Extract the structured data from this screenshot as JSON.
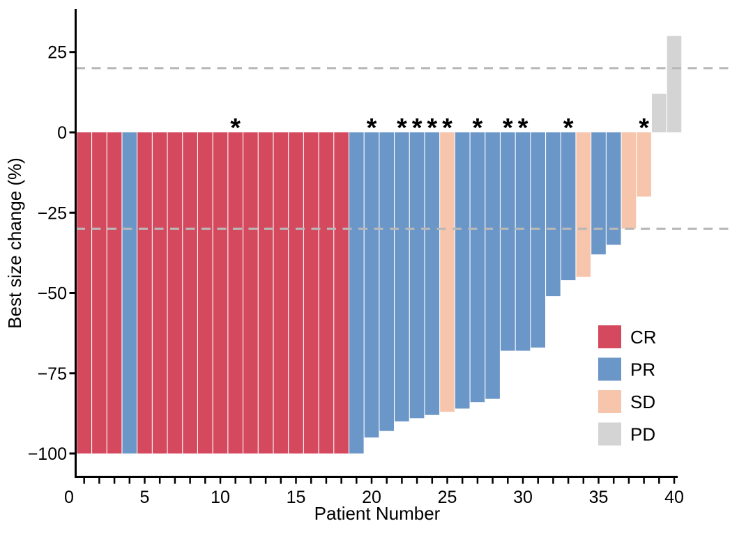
{
  "chart_data": {
    "type": "bar",
    "title": "",
    "xlabel": "Patient Number",
    "ylabel": "Best size change (%)",
    "xlim": [
      0,
      40
    ],
    "ylim": [
      -100,
      38
    ],
    "x_ticks_labeled": [
      0,
      5,
      10,
      15,
      20,
      25,
      30,
      35,
      40
    ],
    "x_minor_tick_step": 1,
    "y_ticks": [
      25,
      0,
      -25,
      -50,
      -75,
      -100
    ],
    "grid": "off",
    "reference_lines": [
      20,
      -30
    ],
    "reference_line_style": "dashed",
    "reference_line_color": "#b8b8b8",
    "annotation_symbol": "*",
    "asterisk_patients": [
      11,
      20,
      22,
      23,
      24,
      25,
      27,
      29,
      30,
      33,
      38
    ],
    "legend_position": "right-middle",
    "legend": [
      {
        "label": "CR",
        "color": "#d5495f"
      },
      {
        "label": "PR",
        "color": "#6b96c8"
      },
      {
        "label": "SD",
        "color": "#f7c5ab"
      },
      {
        "label": "PD",
        "color": "#d4d4d4"
      }
    ],
    "patients": [
      {
        "patient": 1,
        "value": -100,
        "response": "CR",
        "asterisk": false
      },
      {
        "patient": 2,
        "value": -100,
        "response": "CR",
        "asterisk": false
      },
      {
        "patient": 3,
        "value": -100,
        "response": "CR",
        "asterisk": false
      },
      {
        "patient": 4,
        "value": -100,
        "response": "PR",
        "asterisk": false
      },
      {
        "patient": 5,
        "value": -100,
        "response": "CR",
        "asterisk": false
      },
      {
        "patient": 6,
        "value": -100,
        "response": "CR",
        "asterisk": false
      },
      {
        "patient": 7,
        "value": -100,
        "response": "CR",
        "asterisk": false
      },
      {
        "patient": 8,
        "value": -100,
        "response": "CR",
        "asterisk": false
      },
      {
        "patient": 9,
        "value": -100,
        "response": "CR",
        "asterisk": false
      },
      {
        "patient": 10,
        "value": -100,
        "response": "CR",
        "asterisk": false
      },
      {
        "patient": 11,
        "value": -100,
        "response": "CR",
        "asterisk": true
      },
      {
        "patient": 12,
        "value": -100,
        "response": "CR",
        "asterisk": false
      },
      {
        "patient": 13,
        "value": -100,
        "response": "CR",
        "asterisk": false
      },
      {
        "patient": 14,
        "value": -100,
        "response": "CR",
        "asterisk": false
      },
      {
        "patient": 15,
        "value": -100,
        "response": "CR",
        "asterisk": false
      },
      {
        "patient": 16,
        "value": -100,
        "response": "CR",
        "asterisk": false
      },
      {
        "patient": 17,
        "value": -100,
        "response": "CR",
        "asterisk": false
      },
      {
        "patient": 18,
        "value": -100,
        "response": "CR",
        "asterisk": false
      },
      {
        "patient": 19,
        "value": -100,
        "response": "PR",
        "asterisk": false
      },
      {
        "patient": 20,
        "value": -95,
        "response": "PR",
        "asterisk": true
      },
      {
        "patient": 21,
        "value": -93,
        "response": "PR",
        "asterisk": false
      },
      {
        "patient": 22,
        "value": -90,
        "response": "PR",
        "asterisk": true
      },
      {
        "patient": 23,
        "value": -89,
        "response": "PR",
        "asterisk": true
      },
      {
        "patient": 24,
        "value": -88,
        "response": "PR",
        "asterisk": true
      },
      {
        "patient": 25,
        "value": -87,
        "response": "SD",
        "asterisk": true
      },
      {
        "patient": 26,
        "value": -86,
        "response": "PR",
        "asterisk": false
      },
      {
        "patient": 27,
        "value": -84,
        "response": "PR",
        "asterisk": true
      },
      {
        "patient": 28,
        "value": -83,
        "response": "PR",
        "asterisk": false
      },
      {
        "patient": 29,
        "value": -68,
        "response": "PR",
        "asterisk": true
      },
      {
        "patient": 30,
        "value": -68,
        "response": "PR",
        "asterisk": true
      },
      {
        "patient": 31,
        "value": -67,
        "response": "PR",
        "asterisk": false
      },
      {
        "patient": 32,
        "value": -51,
        "response": "PR",
        "asterisk": false
      },
      {
        "patient": 33,
        "value": -46,
        "response": "PR",
        "asterisk": true
      },
      {
        "patient": 34,
        "value": -45,
        "response": "SD",
        "asterisk": false
      },
      {
        "patient": 35,
        "value": -38,
        "response": "PR",
        "asterisk": false
      },
      {
        "patient": 36,
        "value": -35,
        "response": "PR",
        "asterisk": false
      },
      {
        "patient": 37,
        "value": -30,
        "response": "SD",
        "asterisk": false
      },
      {
        "patient": 38,
        "value": -20,
        "response": "SD",
        "asterisk": true
      },
      {
        "patient": 39,
        "value": 12,
        "response": "PD",
        "asterisk": false
      },
      {
        "patient": 40,
        "value": 30,
        "response": "PD",
        "asterisk": false
      }
    ]
  }
}
